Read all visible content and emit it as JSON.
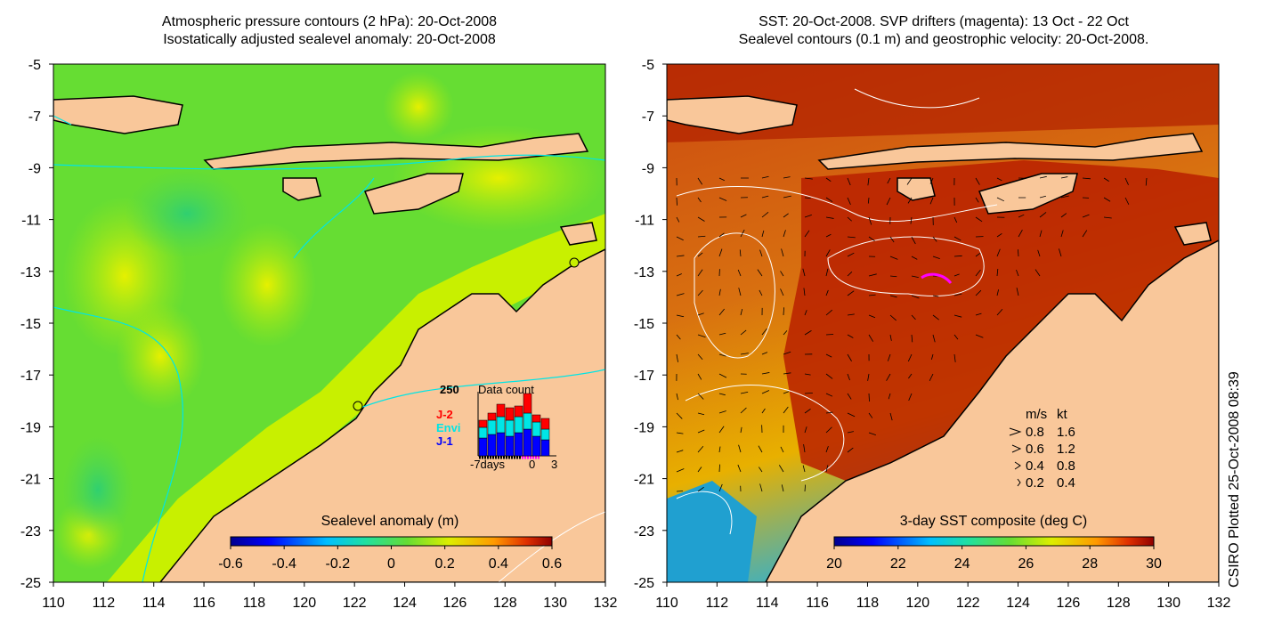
{
  "left_panel": {
    "title_line1": "Atmospheric pressure contours (2 hPa): 20-Oct-2008",
    "title_line2": "Isostatically adjusted sealevel anomaly: 20-Oct-2008",
    "colorbar_label": "Sealevel anomaly (m)",
    "colorbar_ticks": [
      "-0.6",
      "-0.4",
      "-0.2",
      "0",
      "0.2",
      "0.4",
      "0.6"
    ],
    "inset": {
      "max_label": "250",
      "title": "Data count",
      "series": [
        "J-2",
        "Envi",
        "J-1"
      ],
      "series_colors": [
        "#ff0000",
        "#00e6e6",
        "#0000ff"
      ],
      "x_ticks": [
        "-7days",
        "0",
        "3"
      ]
    }
  },
  "right_panel": {
    "title_line1": "SST: 20-Oct-2008. SVP drifters (magenta): 13 Oct - 22 Oct",
    "title_line2": "Sealevel contours (0.1 m) and geostrophic velocity: 20-Oct-2008.",
    "colorbar_label": "3-day SST composite (deg C)",
    "colorbar_ticks": [
      "20",
      "22",
      "24",
      "26",
      "28",
      "30"
    ],
    "velocity_legend": {
      "header_ms": "m/s",
      "header_kt": "kt",
      "rows": [
        {
          "ms": "0.8",
          "kt": "1.6"
        },
        {
          "ms": "0.6",
          "kt": "1.2"
        },
        {
          "ms": "0.4",
          "kt": "0.8"
        },
        {
          "ms": "0.2",
          "kt": "0.4"
        }
      ]
    }
  },
  "axes": {
    "x_ticks": [
      "110",
      "112",
      "114",
      "116",
      "118",
      "120",
      "122",
      "124",
      "126",
      "128",
      "130",
      "132"
    ],
    "y_ticks": [
      "-5",
      "-7",
      "-9",
      "-11",
      "-13",
      "-15",
      "-17",
      "-19",
      "-21",
      "-23",
      "-25"
    ]
  },
  "side_label": "CSIRO Plotted 25-Oct-2008 08:39",
  "colors": {
    "land": "#f9c79a",
    "sla_green": "#66dd33",
    "sst_red": "#b82000"
  }
}
